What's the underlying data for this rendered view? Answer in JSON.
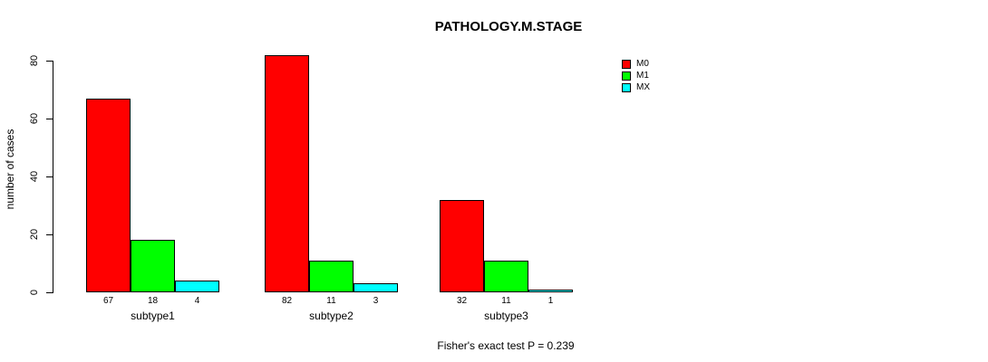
{
  "title": "PATHOLOGY.M.STAGE",
  "footer": "Fisher's exact test P = 0.239",
  "colors": {
    "M0": "#ff0000",
    "M1": "#00ff00",
    "MX": "#00ffff",
    "axis": "#000000",
    "background": "#ffffff"
  },
  "chart_data": {
    "type": "bar",
    "title": "PATHOLOGY.M.STAGE",
    "categories": [
      "subtype1",
      "subtype2",
      "subtype3"
    ],
    "series": [
      {
        "name": "M0",
        "color": "#ff0000",
        "values": [
          67,
          82,
          32
        ]
      },
      {
        "name": "M1",
        "color": "#00ff00",
        "values": [
          18,
          11,
          11
        ]
      },
      {
        "name": "MX",
        "color": "#00ffff",
        "values": [
          4,
          3,
          1
        ]
      }
    ],
    "xlabel": "",
    "ylabel": "number of cases",
    "yticks": [
      0,
      20,
      40,
      60,
      80
    ],
    "ylim": [
      0,
      80
    ],
    "bar_value_labels": true,
    "legend_position": "top-right",
    "grid": false,
    "annotation": "Fisher's exact test P = 0.239"
  }
}
